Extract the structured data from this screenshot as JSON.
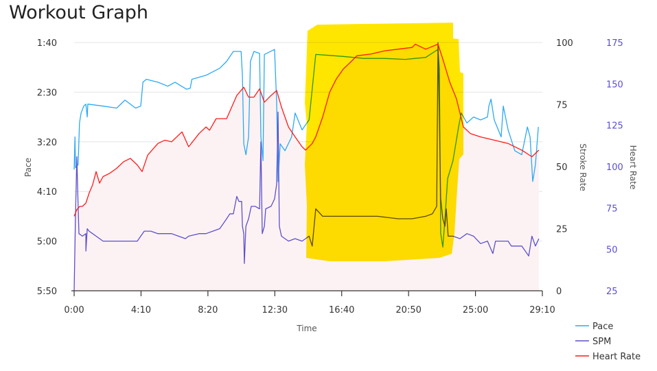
{
  "title": "Workout Graph",
  "chart_data": {
    "type": "line",
    "title": "Workout Graph",
    "xlabel": "Time",
    "x_unit": "seconds",
    "xlim": [
      0,
      1750
    ],
    "x_ticks": [
      0,
      250,
      500,
      750,
      1000,
      1250,
      1500,
      1750
    ],
    "x_tick_labels": [
      "0:00",
      "4:10",
      "8:20",
      "12:30",
      "16:40",
      "20:50",
      "25:00",
      "29:10"
    ],
    "axes": {
      "pace": {
        "label": "Pace",
        "unit": "seconds per 500m",
        "range": [
          100,
          350
        ],
        "inverted": true,
        "ticks": [
          100,
          150,
          200,
          250,
          300,
          350
        ],
        "tick_labels": [
          "1:40",
          "2:30",
          "3:20",
          "4:10",
          "5:00",
          "5:50"
        ]
      },
      "stroke_rate": {
        "label": "Stroke Rate",
        "range": [
          0,
          100
        ],
        "ticks": [
          0,
          25,
          50,
          75,
          100
        ],
        "tick_labels": [
          "0",
          "25",
          "50",
          "75",
          "100"
        ]
      },
      "heart_rate": {
        "label": "Heart Rate",
        "range": [
          25,
          175
        ],
        "ticks": [
          25,
          50,
          75,
          100,
          125,
          150,
          175
        ],
        "tick_labels": [
          "25",
          "50",
          "75",
          "100",
          "125",
          "150",
          "175"
        ]
      }
    },
    "grid": true,
    "legend_position": "bottom-right",
    "series": [
      {
        "name": "Pace",
        "axis": "pace",
        "color": "#2aa9f4",
        "points": [
          [
            0,
            228
          ],
          [
            3,
            195
          ],
          [
            5,
            226
          ],
          [
            15,
            223
          ],
          [
            20,
            181
          ],
          [
            26,
            171
          ],
          [
            36,
            164
          ],
          [
            44,
            162
          ],
          [
            49,
            175
          ],
          [
            51,
            162
          ],
          [
            108,
            164
          ],
          [
            159,
            166
          ],
          [
            190,
            158
          ],
          [
            230,
            166
          ],
          [
            249,
            164
          ],
          [
            257,
            140
          ],
          [
            270,
            137
          ],
          [
            313,
            140
          ],
          [
            350,
            144
          ],
          [
            377,
            140
          ],
          [
            420,
            147
          ],
          [
            434,
            146
          ],
          [
            440,
            137
          ],
          [
            493,
            133
          ],
          [
            544,
            126
          ],
          [
            570,
            119
          ],
          [
            595,
            109
          ],
          [
            624,
            109
          ],
          [
            629,
            133
          ],
          [
            634,
            202
          ],
          [
            642,
            213
          ],
          [
            652,
            195
          ],
          [
            659,
            119
          ],
          [
            672,
            109
          ],
          [
            693,
            111
          ],
          [
            698,
            195
          ],
          [
            706,
            219
          ],
          [
            711,
            112
          ],
          [
            749,
            107
          ],
          [
            757,
            161
          ],
          [
            762,
            240
          ],
          [
            770,
            202
          ],
          [
            788,
            209
          ],
          [
            813,
            195
          ],
          [
            826,
            171
          ],
          [
            852,
            188
          ],
          [
            878,
            178
          ],
          [
            903,
            112
          ],
          [
            955,
            113
          ],
          [
            1006,
            114
          ],
          [
            1083,
            116
          ],
          [
            1160,
            116
          ],
          [
            1237,
            117
          ],
          [
            1314,
            115
          ],
          [
            1360,
            107
          ],
          [
            1365,
            126
          ],
          [
            1370,
            292
          ],
          [
            1378,
            306
          ],
          [
            1386,
            278
          ],
          [
            1396,
            237
          ],
          [
            1416,
            219
          ],
          [
            1437,
            185
          ],
          [
            1447,
            171
          ],
          [
            1468,
            181
          ],
          [
            1493,
            175
          ],
          [
            1519,
            178
          ],
          [
            1545,
            175
          ],
          [
            1550,
            164
          ],
          [
            1558,
            157
          ],
          [
            1570,
            178
          ],
          [
            1596,
            195
          ],
          [
            1604,
            164
          ],
          [
            1622,
            188
          ],
          [
            1647,
            209
          ],
          [
            1673,
            213
          ],
          [
            1694,
            185
          ],
          [
            1704,
            195
          ],
          [
            1714,
            240
          ],
          [
            1724,
            223
          ],
          [
            1735,
            185
          ]
        ]
      },
      {
        "name": "SPM",
        "axis": "stroke_rate",
        "color": "#5b4fcf",
        "points": [
          [
            0,
            0
          ],
          [
            5,
            29
          ],
          [
            10,
            54
          ],
          [
            15,
            34
          ],
          [
            18,
            23
          ],
          [
            31,
            22
          ],
          [
            44,
            23
          ],
          [
            44,
            16
          ],
          [
            49,
            25
          ],
          [
            56,
            24
          ],
          [
            69,
            23
          ],
          [
            82,
            22
          ],
          [
            108,
            20
          ],
          [
            133,
            20
          ],
          [
            159,
            20
          ],
          [
            185,
            20
          ],
          [
            210,
            20
          ],
          [
            236,
            20
          ],
          [
            249,
            22
          ],
          [
            262,
            24
          ],
          [
            287,
            24
          ],
          [
            313,
            23
          ],
          [
            339,
            23
          ],
          [
            364,
            23
          ],
          [
            390,
            22
          ],
          [
            416,
            21
          ],
          [
            428,
            22
          ],
          [
            467,
            23
          ],
          [
            493,
            23
          ],
          [
            518,
            24
          ],
          [
            544,
            25
          ],
          [
            557,
            27
          ],
          [
            570,
            29
          ],
          [
            582,
            31
          ],
          [
            595,
            31
          ],
          [
            608,
            38
          ],
          [
            616,
            36
          ],
          [
            626,
            36
          ],
          [
            629,
            26
          ],
          [
            634,
            23
          ],
          [
            636,
            11
          ],
          [
            642,
            26
          ],
          [
            652,
            29
          ],
          [
            662,
            34
          ],
          [
            677,
            34
          ],
          [
            693,
            33
          ],
          [
            698,
            60
          ],
          [
            703,
            23
          ],
          [
            711,
            26
          ],
          [
            716,
            33
          ],
          [
            736,
            34
          ],
          [
            749,
            37
          ],
          [
            757,
            43
          ],
          [
            762,
            72
          ],
          [
            767,
            26
          ],
          [
            775,
            22
          ],
          [
            801,
            20
          ],
          [
            826,
            21
          ],
          [
            852,
            20
          ],
          [
            878,
            22
          ],
          [
            890,
            18
          ],
          [
            903,
            33
          ],
          [
            929,
            30
          ],
          [
            980,
            30
          ],
          [
            1057,
            30
          ],
          [
            1134,
            30
          ],
          [
            1211,
            29
          ],
          [
            1263,
            29
          ],
          [
            1314,
            30
          ],
          [
            1339,
            31
          ],
          [
            1355,
            34
          ],
          [
            1360,
            100
          ],
          [
            1365,
            69
          ],
          [
            1370,
            37
          ],
          [
            1378,
            29
          ],
          [
            1386,
            26
          ],
          [
            1391,
            33
          ],
          [
            1398,
            22
          ],
          [
            1416,
            22
          ],
          [
            1442,
            21
          ],
          [
            1468,
            23
          ],
          [
            1493,
            22
          ],
          [
            1519,
            19
          ],
          [
            1545,
            20
          ],
          [
            1565,
            15
          ],
          [
            1575,
            20
          ],
          [
            1596,
            20
          ],
          [
            1622,
            20
          ],
          [
            1634,
            18
          ],
          [
            1673,
            18
          ],
          [
            1699,
            14
          ],
          [
            1711,
            22
          ],
          [
            1724,
            18
          ],
          [
            1737,
            21
          ]
        ]
      },
      {
        "name": "Heart Rate",
        "axis": "heart_rate",
        "color": "#ff1a1a",
        "filled": true,
        "fill_color": "#fdf2f3",
        "points": [
          [
            0,
            70
          ],
          [
            10,
            74
          ],
          [
            21,
            76
          ],
          [
            31,
            76
          ],
          [
            44,
            78
          ],
          [
            56,
            84
          ],
          [
            69,
            89
          ],
          [
            82,
            97
          ],
          [
            95,
            90
          ],
          [
            108,
            94
          ],
          [
            133,
            96
          ],
          [
            159,
            99
          ],
          [
            185,
            103
          ],
          [
            210,
            105
          ],
          [
            236,
            101
          ],
          [
            254,
            97
          ],
          [
            275,
            107
          ],
          [
            313,
            114
          ],
          [
            339,
            116
          ],
          [
            364,
            115
          ],
          [
            403,
            121
          ],
          [
            428,
            112
          ],
          [
            467,
            120
          ],
          [
            493,
            124
          ],
          [
            506,
            122
          ],
          [
            531,
            129
          ],
          [
            570,
            129
          ],
          [
            608,
            143
          ],
          [
            634,
            148
          ],
          [
            652,
            142
          ],
          [
            672,
            142
          ],
          [
            693,
            147
          ],
          [
            711,
            139
          ],
          [
            736,
            143
          ],
          [
            757,
            146
          ],
          [
            775,
            136
          ],
          [
            801,
            124
          ],
          [
            826,
            118
          ],
          [
            852,
            112
          ],
          [
            865,
            110
          ],
          [
            890,
            114
          ],
          [
            903,
            118
          ],
          [
            929,
            130
          ],
          [
            955,
            145
          ],
          [
            980,
            153
          ],
          [
            1006,
            159
          ],
          [
            1032,
            163
          ],
          [
            1057,
            167
          ],
          [
            1108,
            168
          ],
          [
            1160,
            170
          ],
          [
            1211,
            171
          ],
          [
            1263,
            172
          ],
          [
            1275,
            174
          ],
          [
            1314,
            171
          ],
          [
            1360,
            174
          ],
          [
            1378,
            165
          ],
          [
            1404,
            151
          ],
          [
            1429,
            141
          ],
          [
            1455,
            124
          ],
          [
            1481,
            120
          ],
          [
            1519,
            118
          ],
          [
            1570,
            116
          ],
          [
            1622,
            114
          ],
          [
            1673,
            110
          ],
          [
            1711,
            106
          ],
          [
            1737,
            110
          ]
        ]
      }
    ],
    "annotations": [
      {
        "type": "highlight",
        "color": "#ffe600",
        "time_range": [
          860,
          1460
        ]
      }
    ]
  }
}
